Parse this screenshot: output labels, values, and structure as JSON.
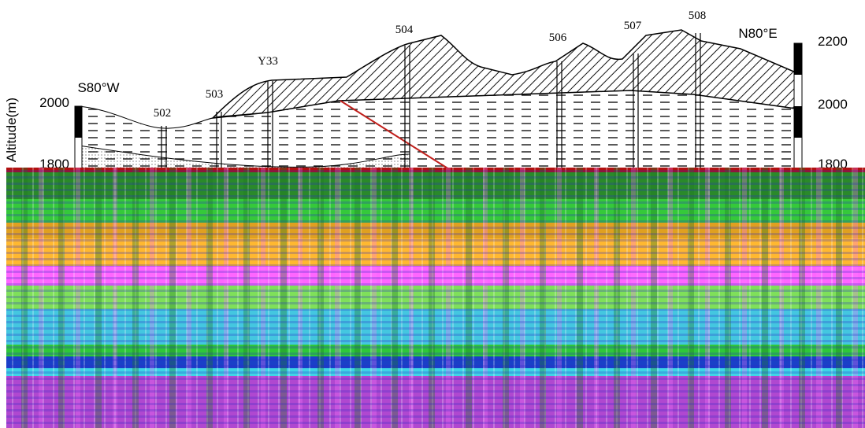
{
  "directions": {
    "west": "S80°W",
    "east": "N80°E"
  },
  "axis_title": "Altitude(m)",
  "left_scale": [
    2000,
    1800
  ],
  "right_scale": [
    2200,
    2000,
    1800
  ],
  "boreholes": [
    "502",
    "503",
    "Y33",
    "504",
    "506",
    "507",
    "508"
  ]
}
